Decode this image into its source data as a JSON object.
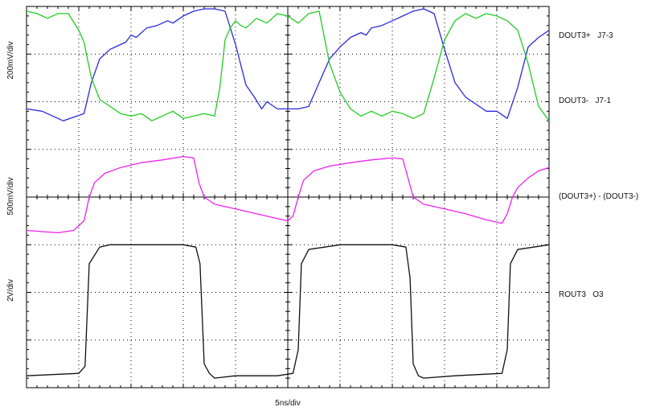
{
  "chart_data": {
    "type": "line",
    "xlabel": "5ns/div",
    "grid": true,
    "divisions": {
      "horizontal": 10,
      "vertical": 8
    },
    "x_range_ns": [
      0,
      50
    ],
    "panels": [
      {
        "scale_label": "200mV/div",
        "y_range_div": [
          0,
          3
        ],
        "series": [
          {
            "name": "DOUT3+   J7-3",
            "color": "#2a2ae0",
            "x": [
              0,
              1.5,
              3.5,
              5.5,
              6.2,
              7,
              8,
              9,
              9.5,
              10,
              10.5,
              11.5,
              12.5,
              13.5,
              14,
              15,
              16,
              17,
              18,
              19,
              20,
              21,
              21.8,
              22.5,
              23,
              24,
              25,
              26,
              27,
              28,
              29,
              30,
              31,
              32,
              32.5,
              33,
              34,
              35,
              36,
              37,
              38,
              39,
              40,
              41,
              42,
              43,
              44,
              45,
              46,
              47,
              48,
              49,
              50
            ],
            "y": [
              0.85,
              0.8,
              0.6,
              0.75,
              1.4,
              1.9,
              2.1,
              2.2,
              2.25,
              2.4,
              2.35,
              2.55,
              2.6,
              2.7,
              2.65,
              2.8,
              2.9,
              2.95,
              2.95,
              2.9,
              2.2,
              1.35,
              1.1,
              0.85,
              1.0,
              0.85,
              0.85,
              0.85,
              0.9,
              1.4,
              1.9,
              2.15,
              2.35,
              2.45,
              2.4,
              2.55,
              2.6,
              2.7,
              2.8,
              2.9,
              2.95,
              2.85,
              2.1,
              1.4,
              1.1,
              0.95,
              0.8,
              0.8,
              0.65,
              1.3,
              2.15,
              2.35,
              2.5
            ]
          },
          {
            "name": "DOUT3-   J7-1",
            "color": "#22cc22",
            "x": [
              0,
              1,
              2,
              3,
              4,
              5,
              5.5,
              6.2,
              7,
              8,
              9,
              10,
              11,
              12,
              13,
              14,
              15,
              16,
              17,
              18,
              18.5,
              19,
              19.5,
              20,
              20.5,
              21,
              22,
              23,
              24,
              25,
              26,
              27,
              28,
              29,
              30,
              31,
              32,
              33,
              34,
              35,
              36,
              37,
              38,
              39,
              40,
              41,
              42,
              43,
              44,
              45,
              46,
              47,
              48,
              49,
              50
            ],
            "y": [
              2.9,
              2.85,
              2.75,
              2.85,
              2.85,
              2.5,
              2.25,
              1.5,
              1.05,
              0.9,
              0.75,
              0.7,
              0.75,
              0.6,
              0.7,
              0.8,
              0.65,
              0.7,
              0.75,
              0.7,
              1.3,
              2.3,
              2.55,
              2.7,
              2.6,
              2.55,
              2.75,
              2.65,
              2.85,
              2.8,
              2.65,
              2.85,
              2.9,
              1.8,
              1.2,
              0.85,
              0.7,
              0.8,
              0.7,
              0.8,
              0.75,
              0.65,
              0.75,
              1.5,
              2.3,
              2.7,
              2.85,
              2.75,
              2.85,
              2.8,
              2.7,
              2.5,
              1.8,
              0.9,
              0.6
            ]
          }
        ]
      },
      {
        "scale_label": "500mV/div",
        "y_range_div": [
          0,
          2
        ],
        "series": [
          {
            "name": "(DOUT3+) - (DOUT3-)",
            "color": "#ee22ee",
            "x": [
              0,
              3,
              4.5,
              5.5,
              6,
              6.5,
              7.5,
              9,
              11,
              13,
              15,
              16,
              16.5,
              17,
              18,
              20,
              22,
              24,
              25,
              25.5,
              26,
              26.5,
              27.5,
              29,
              31,
              33,
              35,
              36,
              36.5,
              37,
              38,
              40,
              42,
              44,
              45.5,
              46,
              46.5,
              47,
              48,
              49,
              50
            ],
            "y": [
              0.3,
              0.25,
              0.3,
              0.5,
              1.0,
              1.3,
              1.5,
              1.62,
              1.72,
              1.78,
              1.85,
              1.82,
              1.3,
              1.0,
              0.85,
              0.75,
              0.65,
              0.55,
              0.5,
              0.6,
              1.0,
              1.35,
              1.55,
              1.65,
              1.72,
              1.78,
              1.82,
              1.8,
              1.4,
              1.0,
              0.85,
              0.75,
              0.65,
              0.52,
              0.45,
              0.65,
              1.0,
              1.2,
              1.4,
              1.55,
              1.62
            ]
          }
        ]
      },
      {
        "scale_label": "2V/div",
        "y_range_div": [
          0,
          3
        ],
        "series": [
          {
            "name": "ROUT3   O3",
            "color": "#111111",
            "x": [
              0,
              5,
              5.6,
              6,
              7,
              8,
              10,
              15,
              16.2,
              16.6,
              17,
              17.5,
              18,
              20,
              24,
              25.5,
              26,
              26.3,
              27,
              30,
              35,
              36.3,
              36.7,
              37,
              37.5,
              38,
              41,
              45.5,
              46,
              46.3,
              47,
              50
            ],
            "y": [
              0.25,
              0.3,
              0.45,
              2.6,
              2.95,
              3.0,
              3.0,
              3.0,
              2.95,
              2.6,
              0.5,
              0.3,
              0.2,
              0.25,
              0.25,
              0.3,
              0.8,
              2.6,
              2.9,
              3.0,
              3.0,
              2.95,
              2.3,
              0.5,
              0.25,
              0.2,
              0.25,
              0.3,
              0.8,
              2.6,
              2.9,
              3.0
            ]
          }
        ]
      }
    ]
  }
}
